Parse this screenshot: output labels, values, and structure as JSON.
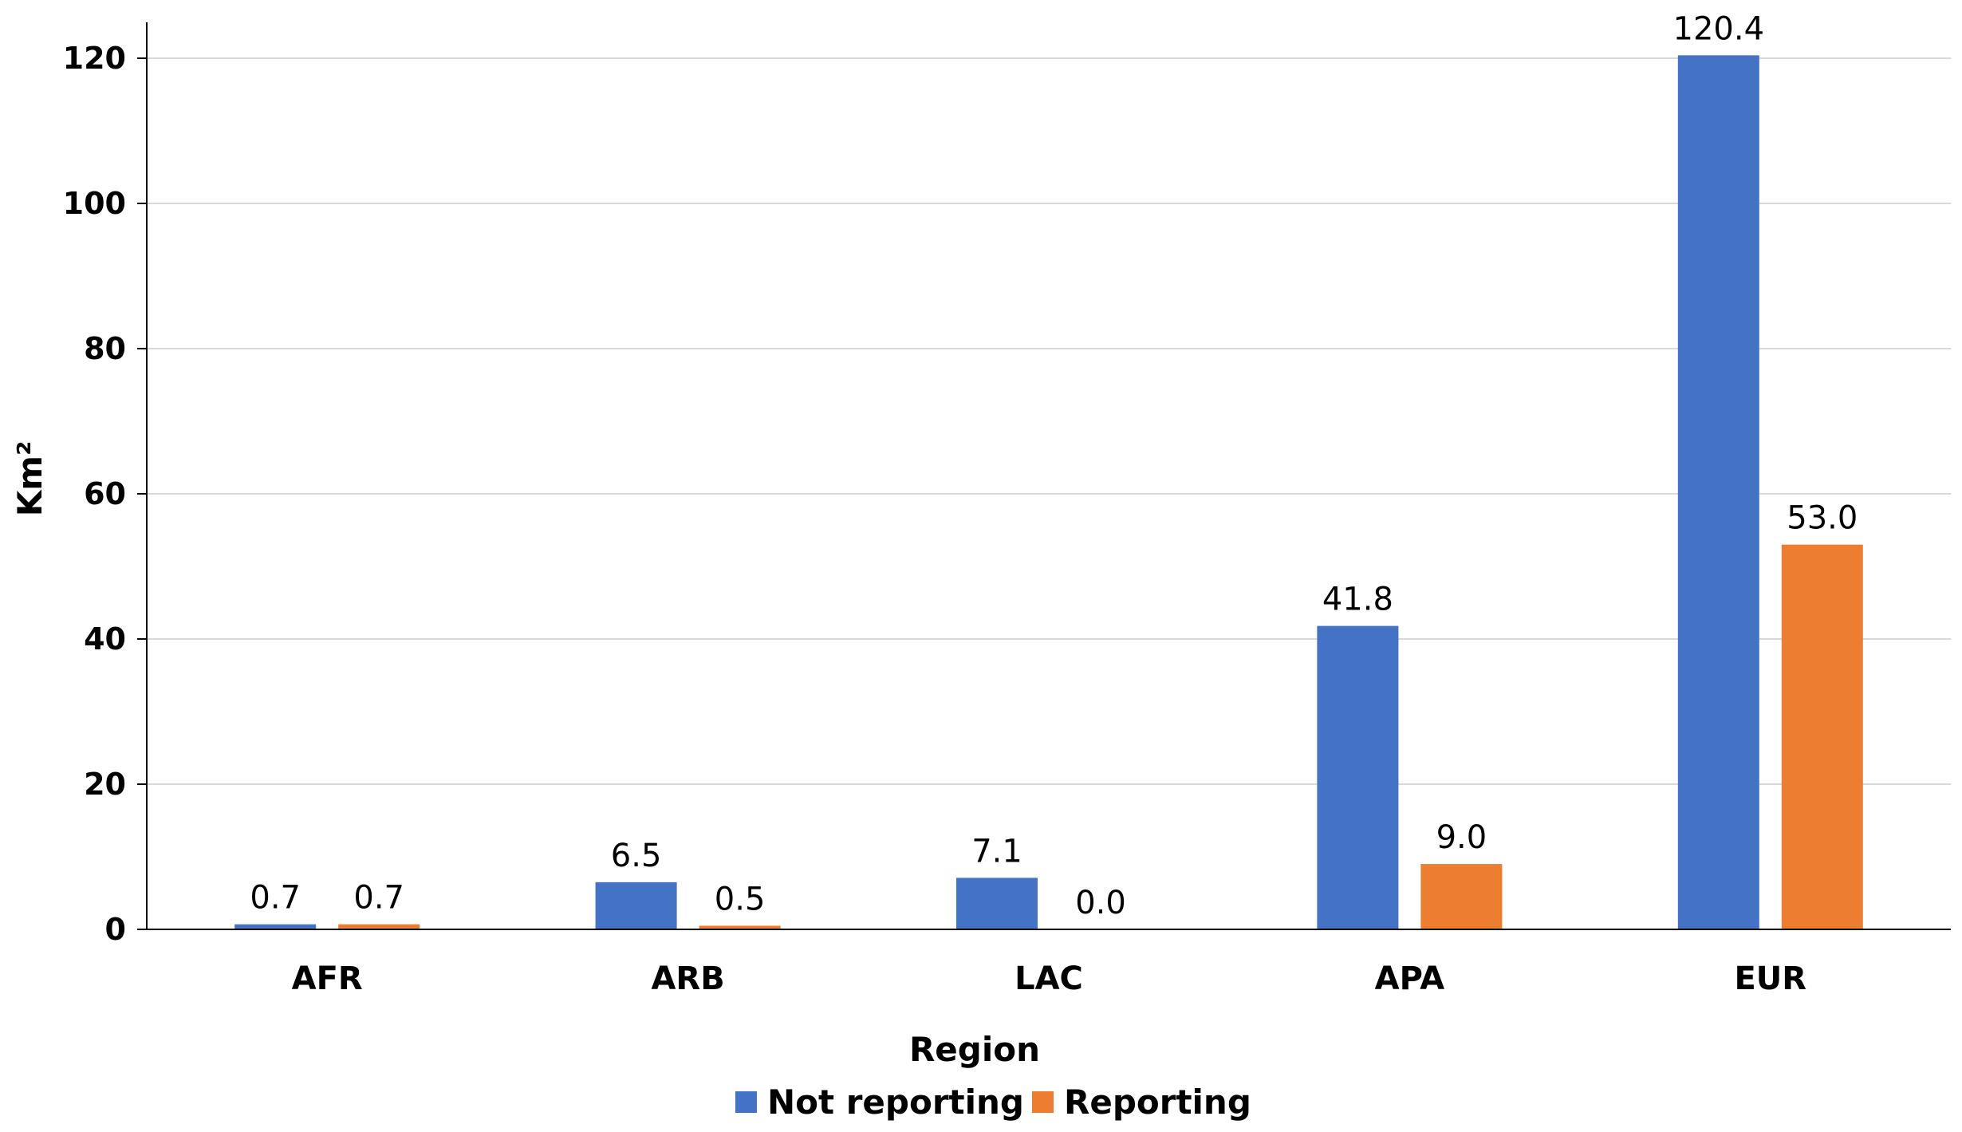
{
  "chart_data": {
    "type": "bar",
    "title": "",
    "xlabel": "Region",
    "ylabel": "Km²",
    "ylim": [
      0,
      120
    ],
    "yticks": [
      0,
      20,
      40,
      60,
      80,
      100,
      120
    ],
    "grid": true,
    "legend_position": "bottom",
    "categories": [
      "AFR",
      "ARB",
      "LAC",
      "APA",
      "EUR"
    ],
    "series": [
      {
        "name": "Not reporting",
        "color": "#4472C4",
        "values": [
          0.7,
          6.5,
          7.1,
          41.8,
          120.4
        ],
        "labels": [
          "0.7",
          "6.5",
          "7.1",
          "41.8",
          "120.4"
        ]
      },
      {
        "name": "Reporting",
        "color": "#ED7D31",
        "values": [
          0.7,
          0.5,
          0.0,
          9.0,
          53.0
        ],
        "labels": [
          "0.7",
          "0.5",
          "0.0",
          "9.0",
          "53.0"
        ]
      }
    ]
  }
}
